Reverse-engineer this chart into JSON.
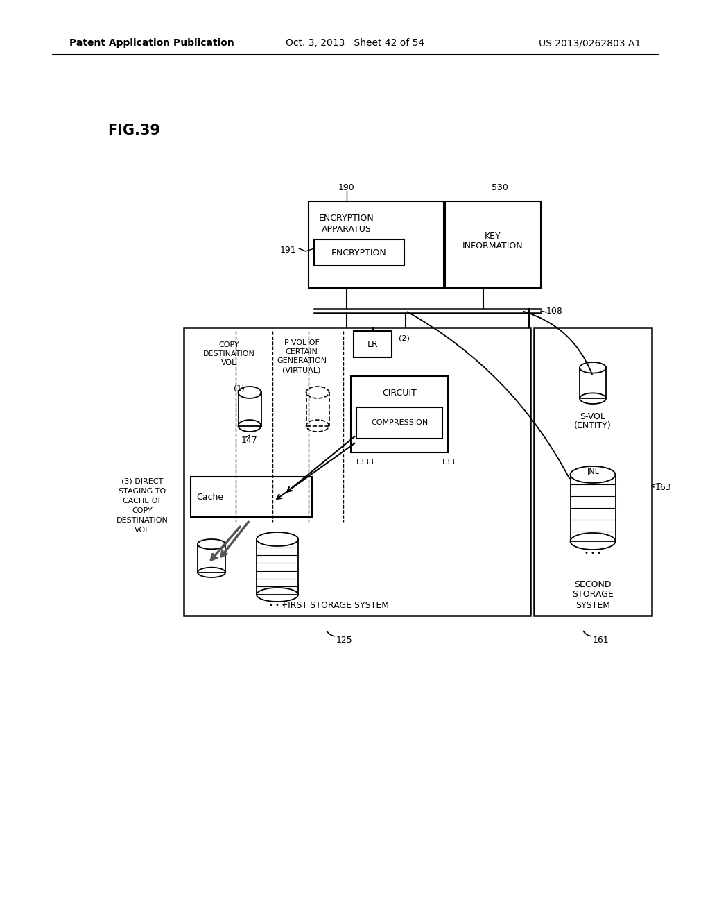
{
  "bg_color": "#ffffff",
  "header_left": "Patent Application Publication",
  "header_mid": "Oct. 3, 2013   Sheet 42 of 54",
  "header_right": "US 2013/0262803 A1",
  "fig_label": "FIG.39"
}
